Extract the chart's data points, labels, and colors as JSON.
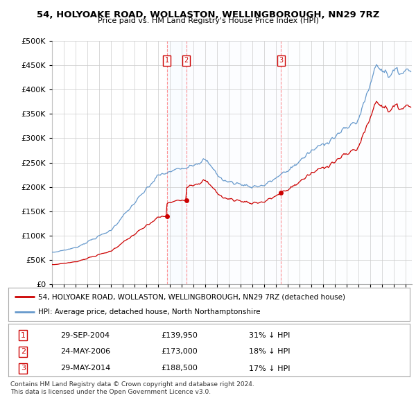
{
  "title": "54, HOLYOAKE ROAD, WOLLASTON, WELLINGBOROUGH, NN29 7RZ",
  "subtitle": "Price paid vs. HM Land Registry's House Price Index (HPI)",
  "legend_line1": "54, HOLYOAKE ROAD, WOLLASTON, WELLINGBOROUGH, NN29 7RZ (detached house)",
  "legend_line2": "HPI: Average price, detached house, North Northamptonshire",
  "footer1": "Contains HM Land Registry data © Crown copyright and database right 2024.",
  "footer2": "This data is licensed under the Open Government Licence v3.0.",
  "sales": [
    {
      "n": 1,
      "date": "29-SEP-2004",
      "price": 139950,
      "pct": "31%",
      "dir": "↓"
    },
    {
      "n": 2,
      "date": "24-MAY-2006",
      "price": 173000,
      "pct": "18%",
      "dir": "↓"
    },
    {
      "n": 3,
      "date": "29-MAY-2014",
      "price": 188500,
      "pct": "17%",
      "dir": "↓"
    }
  ],
  "sale_years": [
    2004.747,
    2006.389,
    2014.411
  ],
  "sale_prices": [
    139950,
    173000,
    188500
  ],
  "hpi_color": "#6699CC",
  "price_color": "#CC0000",
  "dashed_color": "#FF8888",
  "shade_color": "#DDEEFF",
  "background_color": "#FFFFFF",
  "grid_color": "#CCCCCC",
  "ylim": [
    0,
    500000
  ],
  "yticks": [
    0,
    50000,
    100000,
    150000,
    200000,
    250000,
    300000,
    350000,
    400000,
    450000,
    500000
  ],
  "xlim_start": 1995.0,
  "xlim_end": 2025.5
}
